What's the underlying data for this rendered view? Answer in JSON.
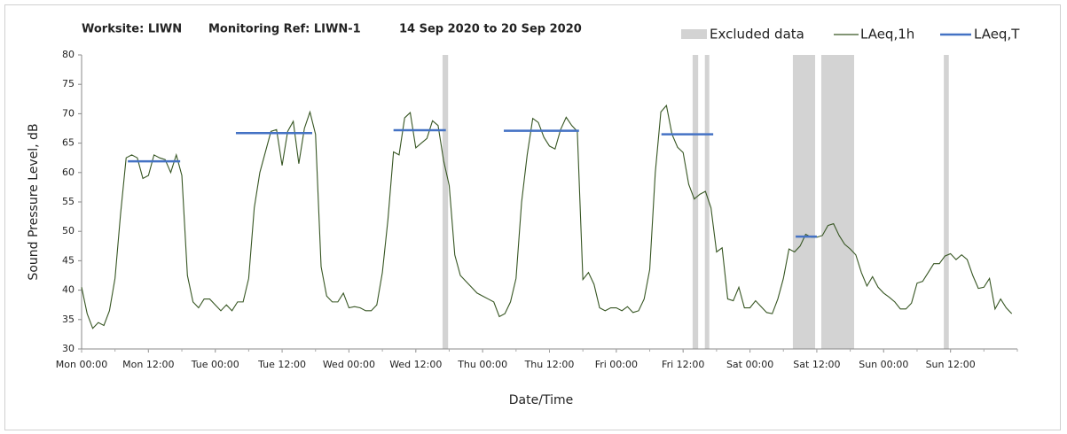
{
  "chart_data": {
    "type": "line",
    "title": [
      "Worksite: LIWN",
      "Monitoring Ref: LIWN-1",
      "14 Sep 2020 to 20 Sep 2020"
    ],
    "xlabel": "Date/Time",
    "ylabel": "Sound Pressure Level, dB",
    "xlim": [
      0,
      168
    ],
    "xticks": [
      {
        "value": 0,
        "label": "Mon 00:00"
      },
      {
        "value": 12,
        "label": "Mon 12:00"
      },
      {
        "value": 24,
        "label": "Tue 00:00"
      },
      {
        "value": 36,
        "label": "Tue 12:00"
      },
      {
        "value": 48,
        "label": "Wed 00:00"
      },
      {
        "value": 60,
        "label": "Wed 12:00"
      },
      {
        "value": 72,
        "label": "Thu 00:00"
      },
      {
        "value": 84,
        "label": "Thu 12:00"
      },
      {
        "value": 96,
        "label": "Fri 00:00"
      },
      {
        "value": 108,
        "label": "Fri 12:00"
      },
      {
        "value": 120,
        "label": "Sat 00:00"
      },
      {
        "value": 132,
        "label": "Sat 12:00"
      },
      {
        "value": 144,
        "label": "Sun 00:00"
      },
      {
        "value": 156,
        "label": "Sun 12:00"
      }
    ],
    "ylim": [
      30,
      80
    ],
    "yticks": [
      30,
      35,
      40,
      45,
      50,
      55,
      60,
      65,
      70,
      75,
      80
    ],
    "x": [
      0,
      1,
      2,
      3,
      4,
      5,
      6,
      7,
      8,
      9,
      10,
      11,
      12,
      13,
      14,
      15,
      16,
      17,
      18,
      19,
      20,
      21,
      22,
      23,
      24,
      25,
      26,
      27,
      28,
      29,
      30,
      31,
      32,
      33,
      34,
      35,
      36,
      37,
      38,
      39,
      40,
      41,
      42,
      43,
      44,
      45,
      46,
      47,
      48,
      49,
      50,
      51,
      52,
      53,
      54,
      55,
      56,
      57,
      58,
      59,
      60,
      61,
      62,
      63,
      64,
      65,
      66,
      67,
      68,
      69,
      70,
      71,
      72,
      73,
      74,
      75,
      76,
      77,
      78,
      79,
      80,
      81,
      82,
      83,
      84,
      85,
      86,
      87,
      88,
      89,
      90,
      91,
      92,
      93,
      94,
      95,
      96,
      97,
      98,
      99,
      100,
      101,
      102,
      103,
      104,
      105,
      106,
      107,
      108,
      109,
      110,
      111,
      112,
      113,
      114,
      115,
      116,
      117,
      118,
      119,
      120,
      121,
      122,
      123,
      124,
      125,
      126,
      127,
      128,
      129,
      130,
      131,
      132,
      133,
      134,
      135,
      136,
      137,
      138,
      139,
      140,
      141,
      142,
      143,
      144,
      145,
      146,
      147,
      148,
      149,
      150,
      151,
      152,
      153,
      154,
      155,
      156,
      157,
      158,
      159,
      160,
      161,
      162,
      163,
      164,
      165,
      166,
      167
    ],
    "series": [
      {
        "name": "LAeq,1h",
        "color": "#375623",
        "values": [
          40.5,
          36,
          33.5,
          34.5,
          34,
          36.5,
          42,
          53,
          62.5,
          63,
          62.5,
          59,
          59.5,
          63,
          62.5,
          62.2,
          60,
          63,
          59.5,
          42.5,
          38,
          37,
          38.5,
          38.5,
          37.5,
          36.5,
          37.5,
          36.5,
          38,
          38,
          42,
          54,
          60,
          63.5,
          67,
          67.3,
          61.2,
          67,
          68.7,
          61.5,
          67.5,
          70.3,
          66.5,
          44,
          39,
          38,
          38,
          39.5,
          37,
          37.2,
          37,
          36.5,
          36.5,
          37.5,
          43,
          52,
          63.5,
          63,
          69.3,
          70.2,
          64.2,
          65,
          65.8,
          68.8,
          68,
          62,
          57.8,
          46,
          42.5,
          41.5,
          40.5,
          39.5,
          39,
          38.5,
          38,
          35.5,
          36,
          38,
          42,
          55,
          63,
          69.2,
          68.5,
          66,
          64.5,
          64,
          67.3,
          69.4,
          68,
          67,
          41.8,
          43,
          41,
          37,
          36.5,
          37,
          37,
          36.5,
          37.2,
          36.2,
          36.5,
          38.5,
          43.5,
          60,
          70.3,
          71.4,
          66.5,
          64.3,
          63.4,
          58,
          55.5,
          56.3,
          56.8,
          54,
          46.5,
          47.2,
          38.5,
          38.2,
          40.5,
          37,
          37,
          38.2,
          37.2,
          36.2,
          36,
          38.5,
          42,
          47,
          46.5,
          47.5,
          49.5,
          49,
          49,
          49.3,
          51,
          51.3,
          49.3,
          47.8,
          47,
          46,
          43,
          40.7,
          42.3,
          40.5,
          39.5,
          38.8,
          38,
          36.8,
          36.8,
          37.8,
          41.2,
          41.5,
          43,
          44.5,
          44.5,
          45.8,
          46.2,
          45.2,
          46,
          45.2,
          42.5,
          40.3,
          40.5,
          42,
          36.8,
          38.5,
          37,
          36
        ]
      }
    ],
    "laeq_t": {
      "name": "LAeq,T",
      "color": "#4472c4",
      "segments": [
        {
          "x": [
            8.3,
            17.7
          ],
          "value": 61.9
        },
        {
          "x": [
            27.7,
            41.4
          ],
          "value": 66.7
        },
        {
          "x": [
            56,
            65.4
          ],
          "value": 67.2
        },
        {
          "x": [
            75.8,
            89.3
          ],
          "value": 67.1
        },
        {
          "x": [
            104.1,
            113.4
          ],
          "value": 66.5
        },
        {
          "x": [
            128.2,
            132
          ],
          "value": 49.1
        }
      ]
    },
    "excluded": {
      "name": "Excluded data",
      "color": "#d3d3d3",
      "ranges": [
        [
          64.8,
          65.8
        ],
        [
          109.7,
          110.7
        ],
        [
          111.9,
          112.7
        ],
        [
          127.7,
          131.7
        ],
        [
          132.8,
          138.7
        ],
        [
          154.8,
          155.7
        ]
      ]
    }
  }
}
